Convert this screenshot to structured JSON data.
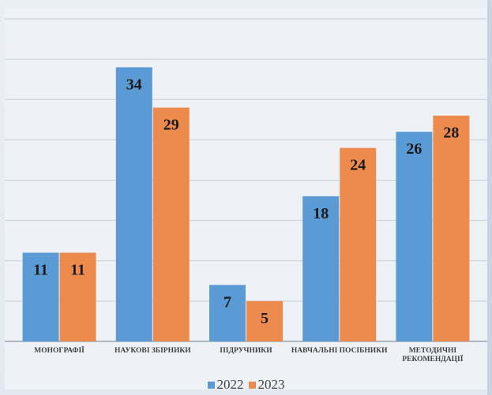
{
  "chart_data": {
    "type": "bar",
    "categories": [
      "МОНОГРАФІЇ",
      "НАУКОВІ ЗБІРНИКИ",
      "ПІДРУЧНИКИ",
      "НАВЧАЛЬНІ ПОСІБНИКИ",
      "МЕТОДИЧНІ РЕКОМЕНДАЦІЇ"
    ],
    "series": [
      {
        "name": "2022",
        "values": [
          11,
          34,
          7,
          18,
          26
        ],
        "color": "#5b9bd5"
      },
      {
        "name": "2023",
        "values": [
          11,
          29,
          5,
          24,
          28
        ],
        "color": "#ed8b4e"
      }
    ],
    "ylim": [
      0,
      40
    ],
    "grid": true,
    "legend": "bottom",
    "show_data_labels": true,
    "show_y_axis_labels": false
  }
}
